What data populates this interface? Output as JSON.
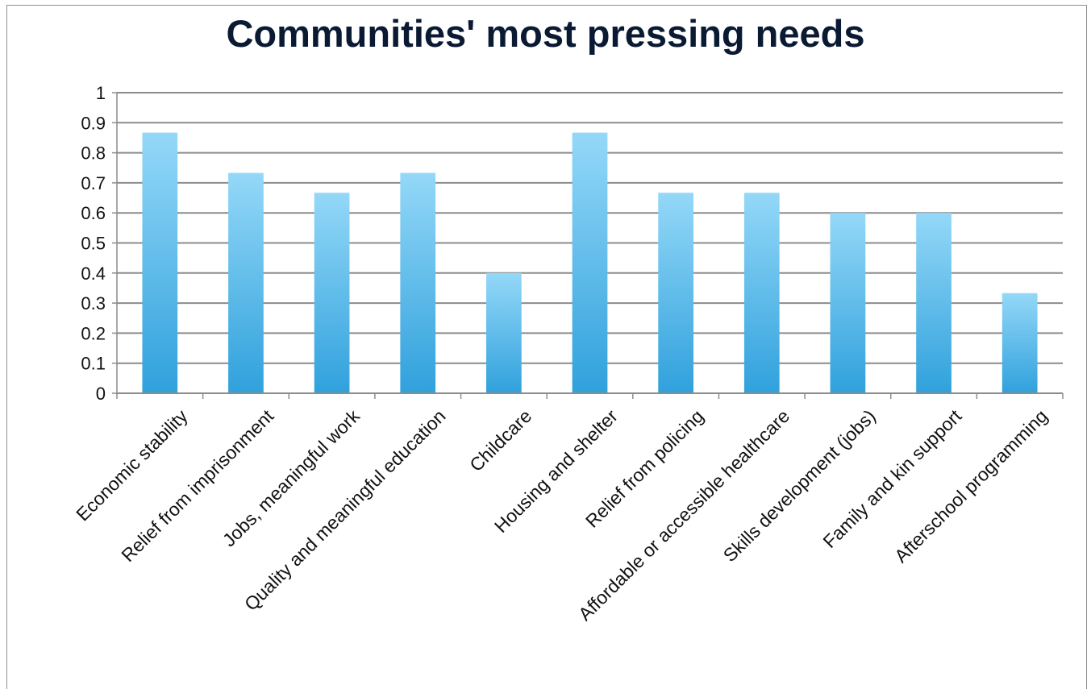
{
  "chart_data": {
    "type": "bar",
    "title": "Communities' most pressing needs",
    "xlabel": "",
    "ylabel": "",
    "ylim": [
      0,
      1
    ],
    "yticks": [
      "0",
      "0.1",
      "0.2",
      "0.3",
      "0.4",
      "0.5",
      "0.6",
      "0.7",
      "0.8",
      "0.9",
      "1"
    ],
    "grid": true,
    "legend": "none",
    "categories": [
      "Economic stability",
      "Relief from imprisonment",
      "Jobs, meaningful work",
      "Quality and meaningful education",
      "Childcare",
      "Housing and shelter",
      "Relief from policing",
      "Affordable or accessible healthcare",
      "Skills development (jobs)",
      "Family and kin support",
      "Afterschool programming"
    ],
    "values": [
      0.867,
      0.733,
      0.667,
      0.733,
      0.4,
      0.867,
      0.667,
      0.667,
      0.6,
      0.6,
      0.333
    ],
    "colors": {
      "bar_top": "#94d8f8",
      "bar_bottom": "#30a1dc",
      "grid": "#8c8c8c",
      "axis": "#8c8c8c",
      "title": "#0b1a33",
      "text": "#111111"
    }
  }
}
